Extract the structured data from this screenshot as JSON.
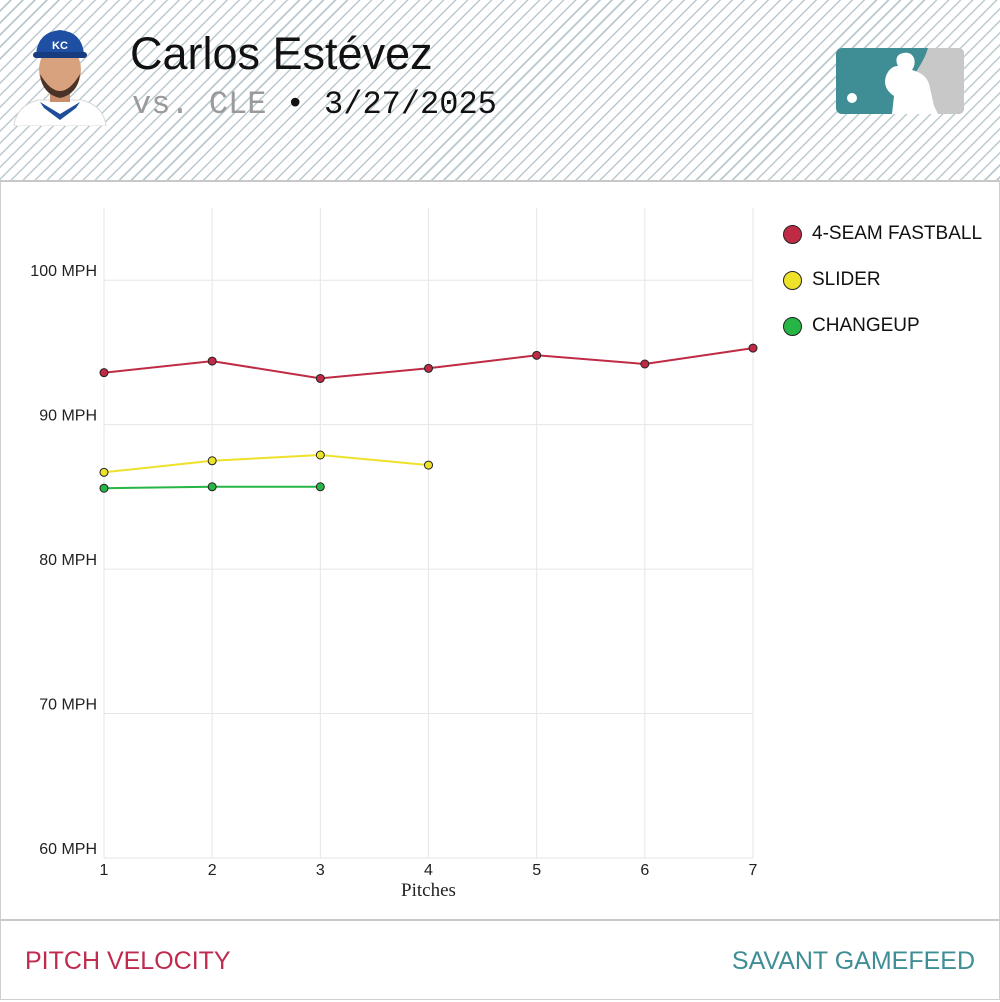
{
  "header": {
    "player_name": "Carlos Estévez",
    "opponent": "vs. CLE",
    "separator": "•",
    "game_date": "3/27/2025",
    "team_cap_letters": "KC",
    "league_logo": "mlb-logo-icon"
  },
  "footer": {
    "left_label": "PITCH VELOCITY",
    "right_label": "SAVANT GAMEFEED"
  },
  "colors": {
    "fastball": "#bf2a44",
    "slider": "#ede229",
    "changeup": "#27b545",
    "accent_red": "#bf2a4e",
    "accent_teal": "#3f8e95"
  },
  "chart_data": {
    "type": "line",
    "title": "PITCH VELOCITY",
    "xlabel": "Pitches",
    "ylabel": "",
    "x": [
      1,
      2,
      3,
      4,
      5,
      6,
      7
    ],
    "xlim": [
      1,
      7
    ],
    "ylim": [
      60,
      105
    ],
    "y_ticks": [
      60,
      70,
      80,
      90,
      100
    ],
    "y_tick_suffix": " MPH",
    "grid": true,
    "legend_position": "top-right",
    "series": [
      {
        "name": "4-SEAM FASTBALL",
        "color": "#bf2a44",
        "x": [
          1,
          2,
          3,
          4,
          5,
          6,
          7
        ],
        "values": [
          93.6,
          94.4,
          93.2,
          93.9,
          94.8,
          94.2,
          95.3
        ]
      },
      {
        "name": "SLIDER",
        "color": "#ede229",
        "x": [
          1,
          2,
          3,
          4
        ],
        "values": [
          86.7,
          87.5,
          87.9,
          87.2
        ]
      },
      {
        "name": "CHANGEUP",
        "color": "#27b545",
        "x": [
          1,
          2,
          3
        ],
        "values": [
          85.6,
          85.7,
          85.7
        ]
      }
    ]
  }
}
